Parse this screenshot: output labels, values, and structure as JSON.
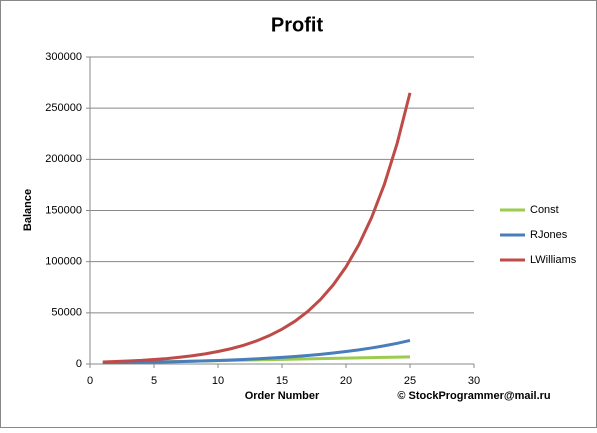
{
  "chart_data": {
    "type": "line",
    "title": "Profit",
    "x_label": "Order Number",
    "y_label": "Balance",
    "annotation": "© StockProgrammer@mail.ru",
    "x": [
      1,
      2,
      3,
      4,
      5,
      6,
      7,
      8,
      9,
      10,
      11,
      12,
      13,
      14,
      15,
      16,
      17,
      18,
      19,
      20,
      21,
      22,
      23,
      24,
      25
    ],
    "series": [
      {
        "name": "Const",
        "color": "#9bcb4f",
        "values": [
          1000,
          1250,
          1500,
          1750,
          2000,
          2250,
          2500,
          2750,
          3000,
          3250,
          3500,
          3750,
          4000,
          4250,
          4500,
          4750,
          5000,
          5250,
          5500,
          5750,
          6000,
          6250,
          6500,
          6750,
          7000
        ]
      },
      {
        "name": "RJones",
        "color": "#4a7ebb",
        "values": [
          1100,
          1250,
          1420,
          1610,
          1820,
          2070,
          2350,
          2670,
          3030,
          3430,
          3900,
          4420,
          5020,
          5700,
          6470,
          7340,
          8330,
          9450,
          10730,
          12180,
          13820,
          15690,
          17800,
          20200,
          23000
        ]
      },
      {
        "name": "LWilliams",
        "color": "#be4b48",
        "values": [
          1900,
          2400,
          2900,
          3500,
          4400,
          5300,
          6600,
          8100,
          9900,
          12200,
          14900,
          18300,
          22500,
          27700,
          34000,
          41700,
          51200,
          62900,
          77300,
          94900,
          116500,
          143100,
          175700,
          215800,
          265000
        ]
      }
    ],
    "xlim": [
      0,
      30
    ],
    "xticks": [
      0,
      5,
      10,
      15,
      20,
      25,
      30
    ],
    "ylim": [
      0,
      300000
    ],
    "yticks": [
      0,
      50000,
      100000,
      150000,
      200000,
      250000,
      300000
    ],
    "grid": true,
    "legend": "right"
  }
}
